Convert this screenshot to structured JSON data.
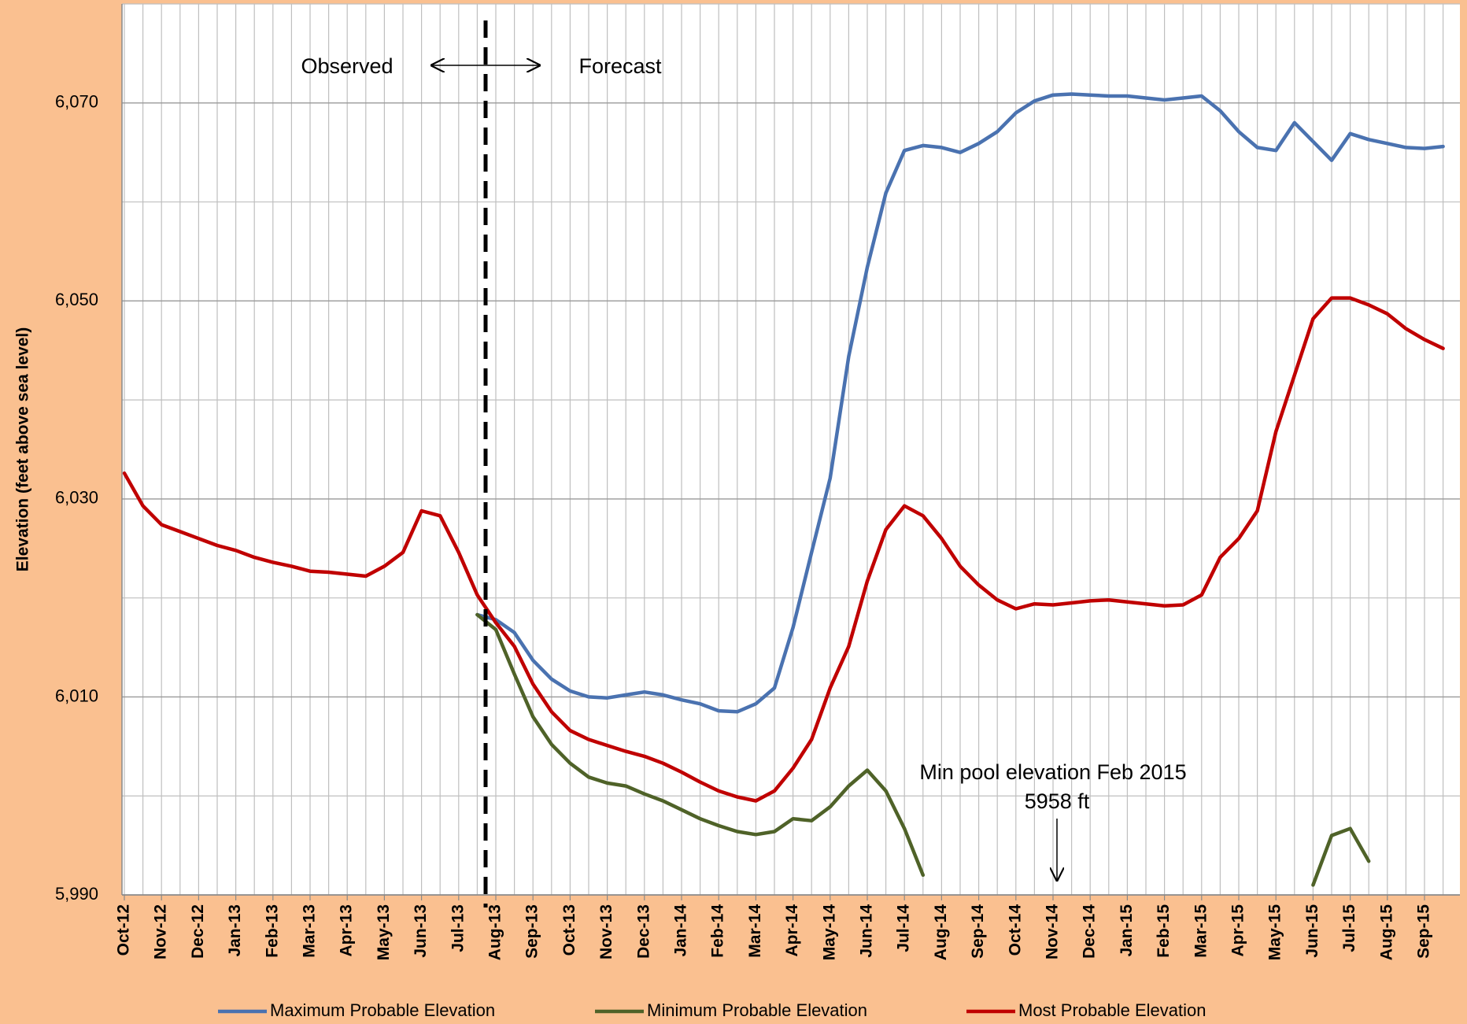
{
  "chart_data": {
    "type": "line",
    "y_axis_label": "Elevation (feet above sea level)",
    "categories": [
      "Oct-12",
      null,
      "Nov-12",
      null,
      "Dec-12",
      null,
      "Jan-13",
      null,
      "Feb-13",
      null,
      "Mar-13",
      null,
      "Apr-13",
      null,
      "May-13",
      null,
      "Jun-13",
      null,
      "Jul-13",
      null,
      "Aug-13",
      null,
      "Sep-13",
      null,
      "Oct-13",
      null,
      "Nov-13",
      null,
      "Dec-13",
      null,
      "Jan-14",
      null,
      "Feb-14",
      null,
      "Mar-14",
      null,
      "Apr-14",
      null,
      "May-14",
      null,
      "Jun-14",
      null,
      "Jul-14",
      null,
      "Aug-14",
      null,
      "Sep-14",
      null,
      "Oct-14",
      null,
      "Nov-14",
      null,
      "Dec-14",
      null,
      "Jan-15",
      null,
      "Feb-15",
      null,
      "Mar-15",
      null,
      "Apr-15",
      null,
      "May-15",
      null,
      "Jun-15",
      null,
      "Jul-15",
      null,
      "Aug-15",
      null,
      "Sep-15",
      null
    ],
    "series": [
      {
        "name": "Maximum Probable Elevation",
        "color": "#4a72b0",
        "values": [
          null,
          null,
          null,
          null,
          null,
          null,
          null,
          null,
          null,
          null,
          null,
          null,
          null,
          null,
          null,
          null,
          null,
          null,
          null,
          6018.3,
          6017.8,
          6016.5,
          6013.7,
          6011.8,
          6010.6,
          6010.0,
          6009.9,
          6010.2,
          6010.5,
          6010.2,
          6009.7,
          6009.3,
          6008.6,
          6008.5,
          6009.3,
          6010.9,
          6017.0,
          6024.6,
          6032.1,
          6044.4,
          6053.4,
          6060.9,
          6065.2,
          6065.7,
          6065.5,
          6065.0,
          6065.9,
          6067.1,
          6069.0,
          6070.2,
          6070.8,
          6070.9,
          6070.8,
          6070.7,
          6070.7,
          6070.5,
          6070.3,
          6070.5,
          6070.7,
          6069.2,
          6067.1,
          6065.5,
          6065.2,
          6068.0,
          6066.1,
          6064.2,
          6066.9,
          6066.3,
          6065.9,
          6065.5,
          6065.4,
          6065.6
        ]
      },
      {
        "name": "Minimum Probable Elevation",
        "color": "#4f6228",
        "values": [
          null,
          null,
          null,
          null,
          null,
          null,
          null,
          null,
          null,
          null,
          null,
          null,
          null,
          null,
          null,
          null,
          null,
          null,
          null,
          6018.3,
          6016.8,
          6012.3,
          6008.0,
          6005.2,
          6003.3,
          6001.9,
          6001.3,
          6001.0,
          6000.2,
          5999.5,
          5998.6,
          5997.7,
          5997.0,
          5996.4,
          5996.1,
          5996.4,
          5997.7,
          5997.5,
          5998.9,
          6001.0,
          6002.6,
          6000.5,
          5996.7,
          5992.0,
          null,
          null,
          null,
          null,
          null,
          null,
          null,
          null,
          null,
          null,
          null,
          null,
          null,
          null,
          null,
          null,
          null,
          null,
          null,
          null,
          5991.0,
          5996.0,
          5996.7,
          5993.4,
          null,
          null,
          null,
          null
        ]
      },
      {
        "name": "Most Probable Elevation",
        "color": "#c00000",
        "values": [
          6032.6,
          6029.3,
          6027.4,
          6026.7,
          6026.0,
          6025.3,
          6024.8,
          6024.1,
          6023.6,
          6023.2,
          6022.7,
          6022.6,
          6022.4,
          6022.2,
          6023.2,
          6024.6,
          6028.8,
          6028.3,
          6024.6,
          6020.3,
          6017.5,
          6015.1,
          6011.3,
          6008.5,
          6006.6,
          6005.7,
          6005.1,
          6004.5,
          6004.0,
          6003.3,
          6002.4,
          6001.4,
          6000.5,
          5999.9,
          5999.5,
          6000.5,
          6002.8,
          6005.7,
          6010.9,
          6015.1,
          6021.7,
          6026.9,
          6029.3,
          6028.3,
          6026.0,
          6023.2,
          6021.3,
          6019.8,
          6018.9,
          6019.4,
          6019.3,
          6019.5,
          6019.7,
          6019.8,
          6019.6,
          6019.4,
          6019.2,
          6019.3,
          6020.3,
          6024.1,
          6026.0,
          6028.8,
          6036.8,
          6042.5,
          6048.2,
          6050.3,
          6050.3,
          6049.6,
          6048.7,
          6047.2,
          6046.1,
          6045.2
        ]
      }
    ],
    "ylim": [
      5990,
      6080
    ],
    "yticks": [
      {
        "value": 5990,
        "label": "5,990"
      },
      {
        "value": 6010,
        "label": "6,010"
      },
      {
        "value": 6030,
        "label": "6,030"
      },
      {
        "value": 6050,
        "label": "6,050"
      },
      {
        "value": 6070,
        "label": "6,070"
      }
    ],
    "y_minor_grid": [
      6000,
      6020,
      6040,
      6060,
      6080
    ],
    "grid": true,
    "legend": "bottom",
    "annotations": {
      "observed": "Observed",
      "forecast": "Forecast",
      "min_pool": "Min pool elevation Feb 2015",
      "min_pool_value": "5958 ft"
    }
  }
}
